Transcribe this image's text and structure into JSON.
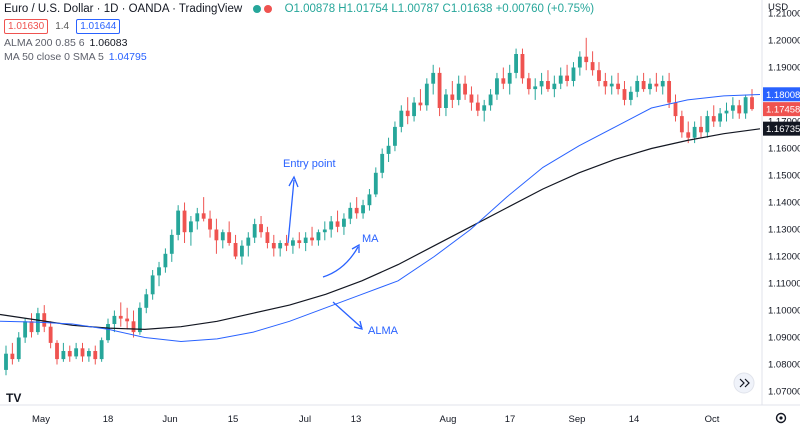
{
  "header": {
    "symbol_title": "Euro / U.S. Dollar · 1D · OANDA · TradingView",
    "ohlc": "O1.00878 H1.01754 L1.00787 C1.01638 +0.00760 (+0.75%)",
    "sell_price": "1.01630",
    "spread": "1.4",
    "buy_price": "1.01644",
    "alma_label": "ALMA 200 0.85 6",
    "alma_value": "1.06083",
    "ma_label": "MA 50 close 0 SMA 5",
    "ma_value": "1.04795",
    "currency": "USD"
  },
  "colors": {
    "up": "#26a69a",
    "down": "#ef5350",
    "ma": "#2962ff",
    "alma": "#131722",
    "annotation": "#2962ff"
  },
  "chart_data": {
    "type": "line",
    "title": "Euro / U.S. Dollar · 1D · OANDA · TradingView",
    "ylim": [
      1.065,
      1.215
    ],
    "y_ticks": [
      "1.21000",
      "1.20000",
      "1.19000",
      "1.18000",
      "1.17000",
      "1.16000",
      "1.15000",
      "1.14000",
      "1.13000",
      "1.12000",
      "1.11000",
      "1.10000",
      "1.09000",
      "1.08000",
      "1.07000"
    ],
    "x_ticks": [
      "May",
      "18",
      "Jun",
      "15",
      "Jul",
      "13",
      "Aug",
      "17",
      "Sep",
      "14",
      "Oct"
    ],
    "series": [
      {
        "name": "MA",
        "y": [
          1.096,
          1.0957,
          1.095,
          1.093,
          1.09,
          1.0885,
          1.0895,
          1.092,
          1.096,
          1.101,
          1.106,
          1.111,
          1.12,
          1.13,
          1.142,
          1.153,
          1.161,
          1.168,
          1.175,
          1.178,
          1.1795,
          1.18
        ]
      },
      {
        "name": "ALMA",
        "y": [
          1.0985,
          1.0965,
          1.0945,
          1.0935,
          1.093,
          1.094,
          1.096,
          1.099,
          1.102,
          1.106,
          1.111,
          1.117,
          1.124,
          1.131,
          1.138,
          1.145,
          1.151,
          1.156,
          1.16,
          1.163,
          1.1655,
          1.1673
        ]
      }
    ],
    "candles": [
      [
        1.078,
        1.087,
        1.076,
        1.084
      ],
      [
        1.084,
        1.088,
        1.08,
        1.082
      ],
      [
        1.082,
        1.092,
        1.081,
        1.09
      ],
      [
        1.09,
        1.097,
        1.088,
        1.096
      ],
      [
        1.096,
        1.099,
        1.09,
        1.092
      ],
      [
        1.092,
        1.101,
        1.091,
        1.099
      ],
      [
        1.099,
        1.102,
        1.092,
        1.094
      ],
      [
        1.094,
        1.096,
        1.086,
        1.088
      ],
      [
        1.088,
        1.089,
        1.08,
        1.082
      ],
      [
        1.082,
        1.088,
        1.081,
        1.085
      ],
      [
        1.085,
        1.087,
        1.081,
        1.083
      ],
      [
        1.083,
        1.088,
        1.082,
        1.086
      ],
      [
        1.086,
        1.088,
        1.081,
        1.083
      ],
      [
        1.083,
        1.086,
        1.081,
        1.085
      ],
      [
        1.085,
        1.087,
        1.08,
        1.082
      ],
      [
        1.082,
        1.09,
        1.081,
        1.089
      ],
      [
        1.089,
        1.097,
        1.088,
        1.095
      ],
      [
        1.095,
        1.1,
        1.092,
        1.098
      ],
      [
        1.098,
        1.103,
        1.094,
        1.097
      ],
      [
        1.097,
        1.101,
        1.093,
        1.096
      ],
      [
        1.096,
        1.1,
        1.09,
        1.092
      ],
      [
        1.092,
        1.103,
        1.091,
        1.101
      ],
      [
        1.101,
        1.108,
        1.099,
        1.106
      ],
      [
        1.106,
        1.115,
        1.104,
        1.113
      ],
      [
        1.113,
        1.118,
        1.109,
        1.116
      ],
      [
        1.116,
        1.123,
        1.114,
        1.121
      ],
      [
        1.121,
        1.13,
        1.118,
        1.128
      ],
      [
        1.128,
        1.139,
        1.126,
        1.137
      ],
      [
        1.137,
        1.14,
        1.125,
        1.129
      ],
      [
        1.129,
        1.135,
        1.124,
        1.133
      ],
      [
        1.133,
        1.138,
        1.13,
        1.136
      ],
      [
        1.136,
        1.142,
        1.133,
        1.134
      ],
      [
        1.134,
        1.137,
        1.127,
        1.13
      ],
      [
        1.13,
        1.134,
        1.121,
        1.126
      ],
      [
        1.126,
        1.13,
        1.123,
        1.129
      ],
      [
        1.129,
        1.133,
        1.124,
        1.125
      ],
      [
        1.125,
        1.128,
        1.119,
        1.12
      ],
      [
        1.12,
        1.126,
        1.117,
        1.124
      ],
      [
        1.124,
        1.129,
        1.12,
        1.127
      ],
      [
        1.127,
        1.134,
        1.125,
        1.132
      ],
      [
        1.132,
        1.135,
        1.127,
        1.129
      ],
      [
        1.129,
        1.131,
        1.123,
        1.125
      ],
      [
        1.125,
        1.128,
        1.12,
        1.123
      ],
      [
        1.123,
        1.126,
        1.12,
        1.125
      ],
      [
        1.125,
        1.128,
        1.122,
        1.124
      ],
      [
        1.124,
        1.127,
        1.121,
        1.126
      ],
      [
        1.126,
        1.129,
        1.123,
        1.125
      ],
      [
        1.125,
        1.129,
        1.122,
        1.127
      ],
      [
        1.127,
        1.131,
        1.124,
        1.126
      ],
      [
        1.126,
        1.13,
        1.124,
        1.129
      ],
      [
        1.129,
        1.133,
        1.126,
        1.13
      ],
      [
        1.13,
        1.135,
        1.127,
        1.133
      ],
      [
        1.133,
        1.137,
        1.129,
        1.131
      ],
      [
        1.131,
        1.136,
        1.128,
        1.134
      ],
      [
        1.134,
        1.14,
        1.132,
        1.138
      ],
      [
        1.138,
        1.142,
        1.134,
        1.136
      ],
      [
        1.136,
        1.141,
        1.134,
        1.139
      ],
      [
        1.139,
        1.145,
        1.137,
        1.143
      ],
      [
        1.143,
        1.153,
        1.142,
        1.151
      ],
      [
        1.151,
        1.16,
        1.149,
        1.158
      ],
      [
        1.158,
        1.164,
        1.155,
        1.161
      ],
      [
        1.161,
        1.17,
        1.159,
        1.168
      ],
      [
        1.168,
        1.176,
        1.166,
        1.174
      ],
      [
        1.174,
        1.179,
        1.169,
        1.172
      ],
      [
        1.172,
        1.179,
        1.17,
        1.177
      ],
      [
        1.177,
        1.182,
        1.174,
        1.176
      ],
      [
        1.176,
        1.186,
        1.174,
        1.184
      ],
      [
        1.184,
        1.191,
        1.18,
        1.188
      ],
      [
        1.188,
        1.19,
        1.172,
        1.175
      ],
      [
        1.175,
        1.182,
        1.172,
        1.18
      ],
      [
        1.18,
        1.185,
        1.175,
        1.178
      ],
      [
        1.178,
        1.187,
        1.176,
        1.184
      ],
      [
        1.184,
        1.187,
        1.178,
        1.18
      ],
      [
        1.18,
        1.183,
        1.174,
        1.177
      ],
      [
        1.177,
        1.18,
        1.172,
        1.174
      ],
      [
        1.174,
        1.178,
        1.17,
        1.176
      ],
      [
        1.176,
        1.182,
        1.174,
        1.18
      ],
      [
        1.18,
        1.188,
        1.178,
        1.186
      ],
      [
        1.186,
        1.19,
        1.182,
        1.184
      ],
      [
        1.184,
        1.191,
        1.18,
        1.188
      ],
      [
        1.188,
        1.197,
        1.186,
        1.195
      ],
      [
        1.195,
        1.197,
        1.184,
        1.186
      ],
      [
        1.186,
        1.188,
        1.18,
        1.182
      ],
      [
        1.182,
        1.186,
        1.178,
        1.183
      ],
      [
        1.183,
        1.188,
        1.18,
        1.185
      ],
      [
        1.185,
        1.189,
        1.181,
        1.182
      ],
      [
        1.182,
        1.187,
        1.179,
        1.184
      ],
      [
        1.184,
        1.19,
        1.182,
        1.187
      ],
      [
        1.187,
        1.191,
        1.183,
        1.185
      ],
      [
        1.185,
        1.192,
        1.183,
        1.19
      ],
      [
        1.19,
        1.196,
        1.187,
        1.194
      ],
      [
        1.194,
        1.201,
        1.189,
        1.192
      ],
      [
        1.192,
        1.196,
        1.187,
        1.189
      ],
      [
        1.189,
        1.192,
        1.183,
        1.185
      ],
      [
        1.185,
        1.188,
        1.18,
        1.183
      ],
      [
        1.183,
        1.187,
        1.18,
        1.184
      ],
      [
        1.184,
        1.188,
        1.18,
        1.182
      ],
      [
        1.182,
        1.185,
        1.176,
        1.178
      ],
      [
        1.178,
        1.183,
        1.176,
        1.181
      ],
      [
        1.181,
        1.187,
        1.179,
        1.185
      ],
      [
        1.185,
        1.188,
        1.181,
        1.182
      ],
      [
        1.182,
        1.186,
        1.18,
        1.184
      ],
      [
        1.184,
        1.188,
        1.181,
        1.183
      ],
      [
        1.183,
        1.187,
        1.18,
        1.185
      ],
      [
        1.185,
        1.188,
        1.175,
        1.177
      ],
      [
        1.177,
        1.18,
        1.17,
        1.172
      ],
      [
        1.172,
        1.174,
        1.164,
        1.166
      ],
      [
        1.166,
        1.17,
        1.162,
        1.164
      ],
      [
        1.164,
        1.17,
        1.162,
        1.168
      ],
      [
        1.168,
        1.172,
        1.164,
        1.166
      ],
      [
        1.166,
        1.174,
        1.164,
        1.172
      ],
      [
        1.172,
        1.176,
        1.168,
        1.17
      ],
      [
        1.17,
        1.175,
        1.168,
        1.173
      ],
      [
        1.173,
        1.177,
        1.17,
        1.174
      ],
      [
        1.174,
        1.179,
        1.171,
        1.176
      ],
      [
        1.176,
        1.178,
        1.171,
        1.173
      ],
      [
        1.173,
        1.18,
        1.171,
        1.179
      ],
      [
        1.179,
        1.182,
        1.174,
        1.1746
      ]
    ],
    "annotations": [
      "Entry point",
      "MA",
      "ALMA"
    ],
    "price_tags": [
      {
        "label": "1.18008",
        "value": 1.18008,
        "color": "#2962ff"
      },
      {
        "label": "1.17458",
        "value": 1.17458,
        "color": "#ef5350"
      },
      {
        "label": "1.16735",
        "value": 1.16735,
        "color": "#131722"
      }
    ],
    "grid": false
  }
}
